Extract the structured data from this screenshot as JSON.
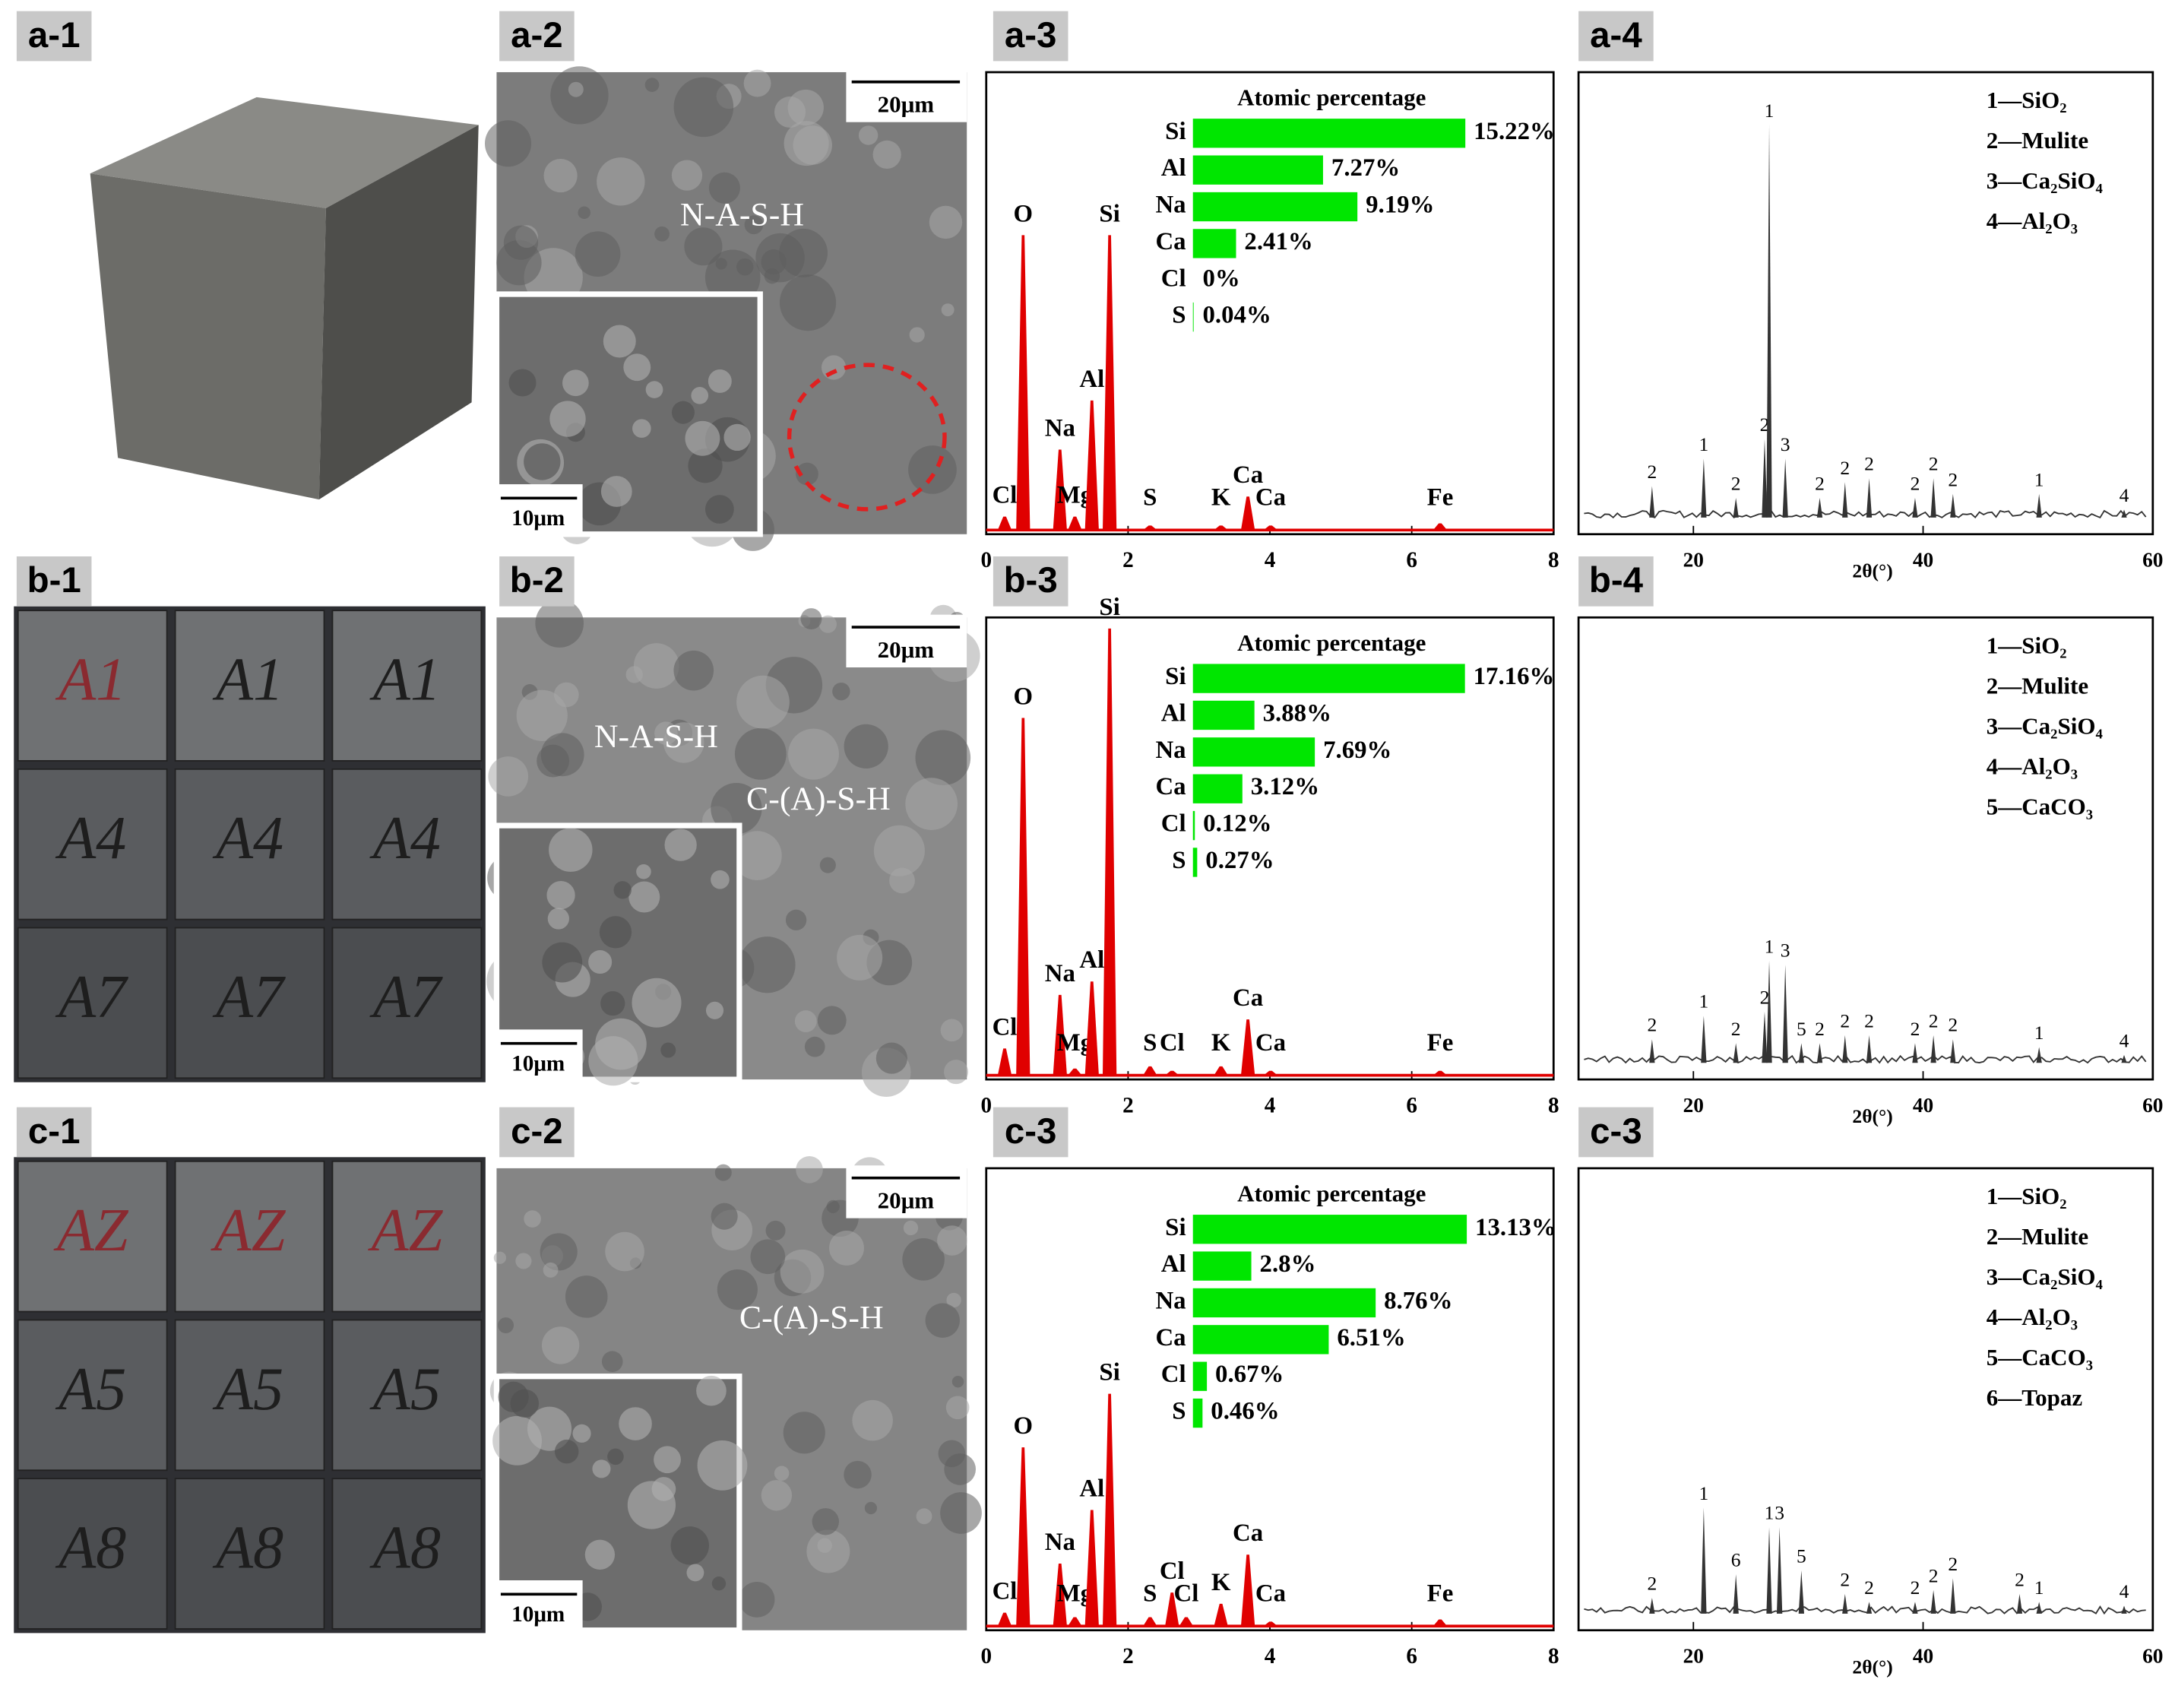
{
  "rows": [
    {
      "photo": {
        "label": "a-1",
        "handwriting": []
      },
      "sem": {
        "label": "a-2",
        "phases": [
          "N-A-S-H"
        ],
        "scale_main": "20μm",
        "scale_inset": "10μm"
      }
    },
    {
      "photo": {
        "label": "b-1",
        "handwriting": [
          [
            "A1",
            "A1",
            "A1"
          ],
          [
            "A4",
            "A4",
            "A4"
          ],
          [
            "A7",
            "A7",
            "A7"
          ]
        ]
      },
      "sem": {
        "label": "b-2",
        "phases": [
          "N-A-S-H",
          "C-(A)-S-H"
        ],
        "scale_main": "20μm",
        "scale_inset": "10μm"
      }
    },
    {
      "photo": {
        "label": "c-1",
        "handwriting": [
          [
            "AZ",
            "AZ",
            "AZ"
          ],
          [
            "A5",
            "A5",
            "A5"
          ],
          [
            "A8",
            "A8",
            "A8"
          ]
        ]
      },
      "sem": {
        "label": "c-2",
        "phases": [
          "C-(A)-S-H"
        ],
        "scale_main": "20μm",
        "scale_inset": "10μm"
      }
    }
  ],
  "chart_data": [
    {
      "type": "spectrum",
      "panel_label": "a-3",
      "xlim": [
        0,
        8
      ],
      "xticks": [
        0,
        2,
        4,
        6,
        8
      ],
      "ylim": [
        0,
        100
      ],
      "color": "#e00000",
      "peaks": [
        {
          "label": "Cl",
          "x": 0.26,
          "value": 3
        },
        {
          "label": "O",
          "x": 0.52,
          "value": 66
        },
        {
          "label": "Na",
          "x": 1.04,
          "value": 18
        },
        {
          "label": "Mg",
          "x": 1.25,
          "value": 3
        },
        {
          "label": "Al",
          "x": 1.49,
          "value": 29
        },
        {
          "label": "Si",
          "x": 1.74,
          "value": 66
        },
        {
          "label": "S",
          "x": 2.31,
          "value": 1
        },
        {
          "label": "K",
          "x": 3.31,
          "value": 1
        },
        {
          "label": "Ca",
          "x": 3.69,
          "value": 7.5
        },
        {
          "label": "Ca",
          "x": 4.01,
          "value": 1
        },
        {
          "label": "Fe",
          "x": 6.4,
          "value": 1.5
        }
      ]
    },
    {
      "type": "bar",
      "title": "Atomic percentage",
      "categories": [
        "Si",
        "Al",
        "Na",
        "Ca",
        "Cl",
        "S"
      ],
      "values": [
        15.22,
        7.27,
        9.19,
        2.41,
        0,
        0.04
      ],
      "value_labels": [
        "15.22%",
        "7.27%",
        "9.19%",
        "2.41%",
        "0%",
        "0.04%"
      ],
      "color": "#00e600",
      "xlim": [
        0,
        15.5
      ]
    },
    {
      "type": "xrd",
      "panel_label": "a-4",
      "xlabel": "2θ(°)",
      "xlim": [
        10,
        60
      ],
      "xticks": [
        20,
        40,
        60
      ],
      "ylim": [
        0,
        100
      ],
      "color": "#333333",
      "legend": [
        "1—SiO₂",
        "2—Mulite",
        "3—Ca₂SiO₄",
        "4—Al₂O₃"
      ],
      "peaks": [
        {
          "label": "2",
          "x": 16.4,
          "value": 8
        },
        {
          "label": "1",
          "x": 20.9,
          "value": 15
        },
        {
          "label": "2",
          "x": 23.7,
          "value": 5
        },
        {
          "label": "2",
          "x": 26.2,
          "value": 20
        },
        {
          "label": "1",
          "x": 26.6,
          "value": 100
        },
        {
          "label": "3",
          "x": 28.0,
          "value": 15
        },
        {
          "label": "2",
          "x": 31.0,
          "value": 5
        },
        {
          "label": "2",
          "x": 33.2,
          "value": 9
        },
        {
          "label": "2",
          "x": 35.3,
          "value": 10
        },
        {
          "label": "2",
          "x": 39.3,
          "value": 5
        },
        {
          "label": "2",
          "x": 40.9,
          "value": 10
        },
        {
          "label": "2",
          "x": 42.6,
          "value": 6
        },
        {
          "label": "1",
          "x": 50.1,
          "value": 6
        },
        {
          "label": "4",
          "x": 57.5,
          "value": 2
        }
      ]
    },
    {
      "type": "spectrum",
      "panel_label": "b-3",
      "xlim": [
        0,
        8
      ],
      "xticks": [
        0,
        2,
        4,
        6,
        8
      ],
      "ylim": [
        0,
        100
      ],
      "color": "#e00000",
      "peaks": [
        {
          "label": "Cl",
          "x": 0.26,
          "value": 6
        },
        {
          "label": "O",
          "x": 0.52,
          "value": 80
        },
        {
          "label": "Na",
          "x": 1.04,
          "value": 18
        },
        {
          "label": "Mg",
          "x": 1.25,
          "value": 1.5
        },
        {
          "label": "Al",
          "x": 1.49,
          "value": 21
        },
        {
          "label": "Si",
          "x": 1.74,
          "value": 100
        },
        {
          "label": "S",
          "x": 2.31,
          "value": 2
        },
        {
          "label": "Cl",
          "x": 2.62,
          "value": 1
        },
        {
          "label": "K",
          "x": 3.31,
          "value": 2
        },
        {
          "label": "Ca",
          "x": 3.69,
          "value": 12.5
        },
        {
          "label": "Ca",
          "x": 4.01,
          "value": 1
        },
        {
          "label": "Fe",
          "x": 6.4,
          "value": 1
        }
      ]
    },
    {
      "type": "bar",
      "title": "Atomic percentage",
      "categories": [
        "Si",
        "Al",
        "Na",
        "Ca",
        "Cl",
        "S"
      ],
      "values": [
        17.16,
        3.88,
        7.69,
        3.12,
        0.12,
        0.27
      ],
      "value_labels": [
        "17.16%",
        "3.88%",
        "7.69%",
        "3.12%",
        "0.12%",
        "0.27%"
      ],
      "color": "#00e600",
      "xlim": [
        0,
        17.5
      ]
    },
    {
      "type": "xrd",
      "panel_label": "b-4",
      "xlabel": "2θ(°)",
      "xlim": [
        10,
        60
      ],
      "xticks": [
        20,
        40,
        60
      ],
      "ylim": [
        0,
        100
      ],
      "color": "#333333",
      "legend": [
        "1—SiO₂",
        "2—Mulite",
        "3—Ca₂SiO₄",
        "4—Al₂O₃",
        "5—CaCO₃"
      ],
      "peaks": [
        {
          "label": "2",
          "x": 16.4,
          "value": 6
        },
        {
          "label": "1",
          "x": 20.9,
          "value": 12
        },
        {
          "label": "2",
          "x": 23.7,
          "value": 5
        },
        {
          "label": "2",
          "x": 26.2,
          "value": 13
        },
        {
          "label": "1",
          "x": 26.6,
          "value": 26
        },
        {
          "label": "3",
          "x": 28.0,
          "value": 25
        },
        {
          "label": "5",
          "x": 29.4,
          "value": 5
        },
        {
          "label": "2",
          "x": 31.0,
          "value": 5
        },
        {
          "label": "2",
          "x": 33.2,
          "value": 7
        },
        {
          "label": "2",
          "x": 35.3,
          "value": 7
        },
        {
          "label": "2",
          "x": 39.3,
          "value": 5
        },
        {
          "label": "2",
          "x": 40.9,
          "value": 7
        },
        {
          "label": "2",
          "x": 42.6,
          "value": 6
        },
        {
          "label": "1",
          "x": 50.1,
          "value": 4
        },
        {
          "label": "4",
          "x": 57.5,
          "value": 2
        }
      ]
    },
    {
      "type": "spectrum",
      "panel_label": "c-3",
      "xlim": [
        0,
        8
      ],
      "xticks": [
        0,
        2,
        4,
        6,
        8
      ],
      "ylim": [
        0,
        100
      ],
      "color": "#e00000",
      "peaks": [
        {
          "label": "Cl",
          "x": 0.26,
          "value": 3
        },
        {
          "label": "O",
          "x": 0.52,
          "value": 40
        },
        {
          "label": "Na",
          "x": 1.04,
          "value": 14
        },
        {
          "label": "Mg",
          "x": 1.25,
          "value": 2
        },
        {
          "label": "Al",
          "x": 1.49,
          "value": 26
        },
        {
          "label": "Si",
          "x": 1.74,
          "value": 52
        },
        {
          "label": "S",
          "x": 2.31,
          "value": 2
        },
        {
          "label": "Cl",
          "x": 2.62,
          "value": 7.5
        },
        {
          "label": "Cl",
          "x": 2.82,
          "value": 2
        },
        {
          "label": "K",
          "x": 3.31,
          "value": 5
        },
        {
          "label": "Ca",
          "x": 3.69,
          "value": 16
        },
        {
          "label": "Ca",
          "x": 4.01,
          "value": 1
        },
        {
          "label": "Fe",
          "x": 6.4,
          "value": 1.5
        }
      ]
    },
    {
      "type": "bar",
      "title": "Atomic percentage",
      "categories": [
        "Si",
        "Al",
        "Na",
        "Ca",
        "Cl",
        "S"
      ],
      "values": [
        13.13,
        2.8,
        8.76,
        6.51,
        0.67,
        0.46
      ],
      "value_labels": [
        "13.13%",
        "2.8%",
        "8.76%",
        "6.51%",
        "0.67%",
        "0.46%"
      ],
      "color": "#00e600",
      "xlim": [
        0,
        13.3
      ]
    },
    {
      "type": "xrd",
      "panel_label": "c-3",
      "xlabel": "2θ(°)",
      "xlim": [
        10,
        60
      ],
      "xticks": [
        20,
        40,
        60
      ],
      "ylim": [
        0,
        100
      ],
      "color": "#333333",
      "legend": [
        "1—SiO₂",
        "2—Mulite",
        "3—Ca₂SiO₄",
        "4—Al₂O₃",
        "5—CaCO₃",
        "6—Topaz"
      ],
      "peaks": [
        {
          "label": "2",
          "x": 16.4,
          "value": 4
        },
        {
          "label": "1",
          "x": 20.9,
          "value": 27
        },
        {
          "label": "6",
          "x": 23.7,
          "value": 10
        },
        {
          "label": "1",
          "x": 26.6,
          "value": 22
        },
        {
          "label": "3",
          "x": 27.5,
          "value": 22
        },
        {
          "label": "5",
          "x": 29.4,
          "value": 11
        },
        {
          "label": "2",
          "x": 33.2,
          "value": 5
        },
        {
          "label": "2",
          "x": 35.3,
          "value": 3
        },
        {
          "label": "2",
          "x": 39.3,
          "value": 3
        },
        {
          "label": "2",
          "x": 40.9,
          "value": 6
        },
        {
          "label": "2",
          "x": 42.6,
          "value": 9
        },
        {
          "label": "2",
          "x": 48.4,
          "value": 5
        },
        {
          "label": "1",
          "x": 50.1,
          "value": 3
        },
        {
          "label": "4",
          "x": 57.5,
          "value": 2
        }
      ]
    }
  ]
}
